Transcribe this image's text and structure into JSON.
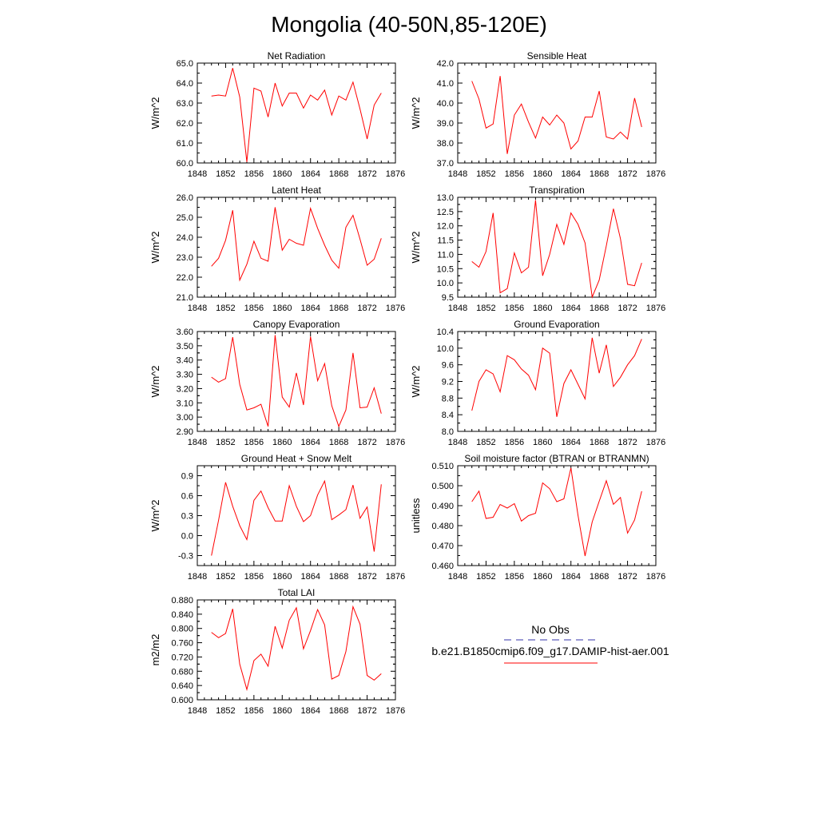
{
  "title": "Mongolia (40-50N,85-120E)",
  "colors": {
    "model": "#ff0000",
    "obs": "#3333aa",
    "axis": "#000000"
  },
  "legend": {
    "obs_label": "No Obs",
    "model_label": "b.e21.B1850cmip6.f09_g17.DAMIP-hist-aer.001"
  },
  "chart_data": [
    {
      "type": "line",
      "title": "Net Radiation",
      "xlabel": "",
      "ylabel": "W/m^2",
      "xlim": [
        1848,
        1876
      ],
      "ylim": [
        60.0,
        65.0
      ],
      "yticks": [
        "60.0",
        "61.0",
        "62.0",
        "63.0",
        "64.0",
        "65.0"
      ],
      "xticks": [
        "1848",
        "1852",
        "1856",
        "1860",
        "1864",
        "1868",
        "1872",
        "1876"
      ],
      "grid": false,
      "series": [
        {
          "x": [
            1850,
            1851,
            1852,
            1853,
            1854,
            1855,
            1856,
            1857,
            1858,
            1859,
            1860,
            1861,
            1862,
            1863,
            1864,
            1865,
            1866,
            1867,
            1868,
            1869,
            1870,
            1871,
            1872,
            1873,
            1874
          ],
          "values": [
            63.35,
            63.4,
            63.35,
            64.75,
            63.3,
            60.05,
            63.75,
            63.6,
            62.3,
            64.0,
            62.85,
            63.5,
            63.5,
            62.75,
            63.4,
            63.15,
            63.65,
            62.4,
            63.35,
            63.15,
            64.05,
            62.7,
            61.2,
            62.9,
            63.5
          ]
        }
      ]
    },
    {
      "type": "line",
      "title": "Sensible Heat",
      "xlabel": "",
      "ylabel": "W/m^2",
      "xlim": [
        1848,
        1876
      ],
      "ylim": [
        37.0,
        42.0
      ],
      "yticks": [
        "37.0",
        "38.0",
        "39.0",
        "40.0",
        "41.0",
        "42.0"
      ],
      "xticks": [
        "1848",
        "1852",
        "1856",
        "1860",
        "1864",
        "1868",
        "1872",
        "1876"
      ],
      "grid": false,
      "series": [
        {
          "x": [
            1850,
            1851,
            1852,
            1853,
            1854,
            1855,
            1856,
            1857,
            1858,
            1859,
            1860,
            1861,
            1862,
            1863,
            1864,
            1865,
            1866,
            1867,
            1868,
            1869,
            1870,
            1871,
            1872,
            1873,
            1874
          ],
          "values": [
            41.1,
            40.2,
            38.75,
            38.95,
            41.35,
            37.45,
            39.4,
            39.95,
            39.05,
            38.25,
            39.3,
            38.9,
            39.4,
            39.0,
            37.7,
            38.1,
            39.3,
            39.3,
            40.6,
            38.3,
            38.2,
            38.55,
            38.2,
            40.25,
            38.8
          ]
        }
      ]
    },
    {
      "type": "line",
      "title": "Latent Heat",
      "xlabel": "",
      "ylabel": "W/m^2",
      "xlim": [
        1848,
        1876
      ],
      "ylim": [
        21.0,
        26.0
      ],
      "yticks": [
        "21.0",
        "22.0",
        "23.0",
        "24.0",
        "25.0",
        "26.0"
      ],
      "xticks": [
        "1848",
        "1852",
        "1856",
        "1860",
        "1864",
        "1868",
        "1872",
        "1876"
      ],
      "grid": false,
      "series": [
        {
          "x": [
            1850,
            1851,
            1852,
            1853,
            1854,
            1855,
            1856,
            1857,
            1858,
            1859,
            1860,
            1861,
            1862,
            1863,
            1864,
            1865,
            1866,
            1867,
            1868,
            1869,
            1870,
            1871,
            1872,
            1873,
            1874
          ],
          "values": [
            22.55,
            22.95,
            23.85,
            25.35,
            21.85,
            22.65,
            23.8,
            22.95,
            22.8,
            25.5,
            23.35,
            23.9,
            23.7,
            23.6,
            25.45,
            24.45,
            23.6,
            22.85,
            22.45,
            24.5,
            25.1,
            23.9,
            22.6,
            22.9,
            23.95
          ]
        }
      ]
    },
    {
      "type": "line",
      "title": "Transpiration",
      "xlabel": "",
      "ylabel": "W/m^2",
      "xlim": [
        1848,
        1876
      ],
      "ylim": [
        9.5,
        13.0
      ],
      "yticks": [
        "9.5",
        "10.0",
        "10.5",
        "11.0",
        "11.5",
        "12.0",
        "12.5",
        "13.0"
      ],
      "xticks": [
        "1848",
        "1852",
        "1856",
        "1860",
        "1864",
        "1868",
        "1872",
        "1876"
      ],
      "grid": false,
      "series": [
        {
          "x": [
            1850,
            1851,
            1852,
            1853,
            1854,
            1855,
            1856,
            1857,
            1858,
            1859,
            1860,
            1861,
            1862,
            1863,
            1864,
            1865,
            1866,
            1867,
            1868,
            1869,
            1870,
            1871,
            1872,
            1873,
            1874
          ],
          "values": [
            10.75,
            10.55,
            11.1,
            12.45,
            9.65,
            9.8,
            11.05,
            10.35,
            10.55,
            12.9,
            10.25,
            11.0,
            12.05,
            11.35,
            12.45,
            12.05,
            11.4,
            9.5,
            10.1,
            11.3,
            12.6,
            11.55,
            9.95,
            9.9,
            10.7
          ]
        }
      ]
    },
    {
      "type": "line",
      "title": "Canopy Evaporation",
      "xlabel": "",
      "ylabel": "W/m^2",
      "xlim": [
        1848,
        1876
      ],
      "ylim": [
        2.9,
        3.6
      ],
      "yticks": [
        "2.90",
        "3.00",
        "3.10",
        "3.20",
        "3.30",
        "3.40",
        "3.50",
        "3.60"
      ],
      "xticks": [
        "1848",
        "1852",
        "1856",
        "1860",
        "1864",
        "1868",
        "1872",
        "1876"
      ],
      "grid": false,
      "series": [
        {
          "x": [
            1850,
            1851,
            1852,
            1853,
            1854,
            1855,
            1856,
            1857,
            1858,
            1859,
            1860,
            1861,
            1862,
            1863,
            1864,
            1865,
            1866,
            1867,
            1868,
            1869,
            1870,
            1871,
            1872,
            1873,
            1874
          ],
          "values": [
            3.28,
            3.245,
            3.27,
            3.56,
            3.23,
            3.05,
            3.065,
            3.09,
            2.935,
            3.575,
            3.14,
            3.07,
            3.31,
            3.085,
            3.565,
            3.255,
            3.375,
            3.08,
            2.935,
            3.05,
            3.45,
            3.065,
            3.07,
            3.205,
            3.025
          ]
        }
      ]
    },
    {
      "type": "line",
      "title": "Ground Evaporation",
      "xlabel": "",
      "ylabel": "W/m^2",
      "xlim": [
        1848,
        1876
      ],
      "ylim": [
        8.0,
        10.4
      ],
      "yticks": [
        "8.0",
        "8.4",
        "8.8",
        "9.2",
        "9.6",
        "10.0",
        "10.4"
      ],
      "xticks": [
        "1848",
        "1852",
        "1856",
        "1860",
        "1864",
        "1868",
        "1872",
        "1876"
      ],
      "grid": false,
      "series": [
        {
          "x": [
            1850,
            1851,
            1852,
            1853,
            1854,
            1855,
            1856,
            1857,
            1858,
            1859,
            1860,
            1861,
            1862,
            1863,
            1864,
            1865,
            1866,
            1867,
            1868,
            1869,
            1870,
            1871,
            1872,
            1873,
            1874
          ],
          "values": [
            8.5,
            9.2,
            9.48,
            9.38,
            8.95,
            9.82,
            9.72,
            9.5,
            9.35,
            9.0,
            10.0,
            9.88,
            8.35,
            9.15,
            9.48,
            9.13,
            8.78,
            10.25,
            9.4,
            10.08,
            9.08,
            9.3,
            9.6,
            9.82,
            10.22
          ]
        }
      ]
    },
    {
      "type": "line",
      "title": "Ground Heat + Snow Melt",
      "xlabel": "",
      "ylabel": "W/m^2",
      "xlim": [
        1848,
        1876
      ],
      "ylim": [
        -0.45,
        1.05
      ],
      "yticks": [
        "-0.3",
        "0.0",
        "0.3",
        "0.6",
        "0.9"
      ],
      "ytick_values": [
        -0.3,
        0.0,
        0.3,
        0.6,
        0.9
      ],
      "xticks": [
        "1848",
        "1852",
        "1856",
        "1860",
        "1864",
        "1868",
        "1872",
        "1876"
      ],
      "grid": false,
      "series": [
        {
          "x": [
            1850,
            1851,
            1852,
            1853,
            1854,
            1855,
            1856,
            1857,
            1858,
            1859,
            1860,
            1861,
            1862,
            1863,
            1864,
            1865,
            1866,
            1867,
            1868,
            1869,
            1870,
            1871,
            1872,
            1873,
            1874
          ],
          "values": [
            -0.3,
            0.23,
            0.8,
            0.44,
            0.15,
            -0.06,
            0.53,
            0.67,
            0.42,
            0.22,
            0.22,
            0.75,
            0.44,
            0.21,
            0.3,
            0.61,
            0.82,
            0.24,
            0.31,
            0.39,
            0.76,
            0.26,
            0.43,
            -0.24,
            0.77
          ]
        }
      ]
    },
    {
      "type": "line",
      "title": "Soil moisture factor (BTRAN or BTRANMN)",
      "xlabel": "",
      "ylabel": "unitless",
      "xlim": [
        1848,
        1876
      ],
      "ylim": [
        0.46,
        0.51
      ],
      "yticks": [
        "0.460",
        "0.470",
        "0.480",
        "0.490",
        "0.500",
        "0.510"
      ],
      "xticks": [
        "1848",
        "1852",
        "1856",
        "1860",
        "1864",
        "1868",
        "1872",
        "1876"
      ],
      "grid": false,
      "series": [
        {
          "x": [
            1850,
            1851,
            1852,
            1853,
            1854,
            1855,
            1856,
            1857,
            1858,
            1859,
            1860,
            1861,
            1862,
            1863,
            1864,
            1865,
            1866,
            1867,
            1868,
            1869,
            1870,
            1871,
            1872,
            1873,
            1874
          ],
          "values": [
            0.492,
            0.4973,
            0.4836,
            0.4842,
            0.4906,
            0.4888,
            0.491,
            0.4823,
            0.485,
            0.4862,
            0.5014,
            0.4985,
            0.492,
            0.4934,
            0.5089,
            0.4851,
            0.4648,
            0.4818,
            0.4922,
            0.5025,
            0.4907,
            0.4941,
            0.4763,
            0.4829,
            0.4972
          ]
        }
      ]
    },
    {
      "type": "line",
      "title": "Total LAI",
      "xlabel": "",
      "ylabel": "m2/m2",
      "xlim": [
        1848,
        1876
      ],
      "ylim": [
        0.6,
        0.88
      ],
      "yticks": [
        "0.600",
        "0.640",
        "0.680",
        "0.720",
        "0.760",
        "0.800",
        "0.840",
        "0.880"
      ],
      "xticks": [
        "1848",
        "1852",
        "1856",
        "1860",
        "1864",
        "1868",
        "1872",
        "1876"
      ],
      "grid": false,
      "series": [
        {
          "x": [
            1850,
            1851,
            1852,
            1853,
            1854,
            1855,
            1856,
            1857,
            1858,
            1859,
            1860,
            1861,
            1862,
            1863,
            1864,
            1865,
            1866,
            1867,
            1868,
            1869,
            1870,
            1871,
            1872,
            1873,
            1874
          ],
          "values": [
            0.789,
            0.774,
            0.786,
            0.855,
            0.7,
            0.629,
            0.71,
            0.728,
            0.694,
            0.806,
            0.745,
            0.823,
            0.858,
            0.743,
            0.794,
            0.853,
            0.81,
            0.658,
            0.668,
            0.735,
            0.861,
            0.812,
            0.668,
            0.655,
            0.673
          ]
        }
      ]
    }
  ]
}
